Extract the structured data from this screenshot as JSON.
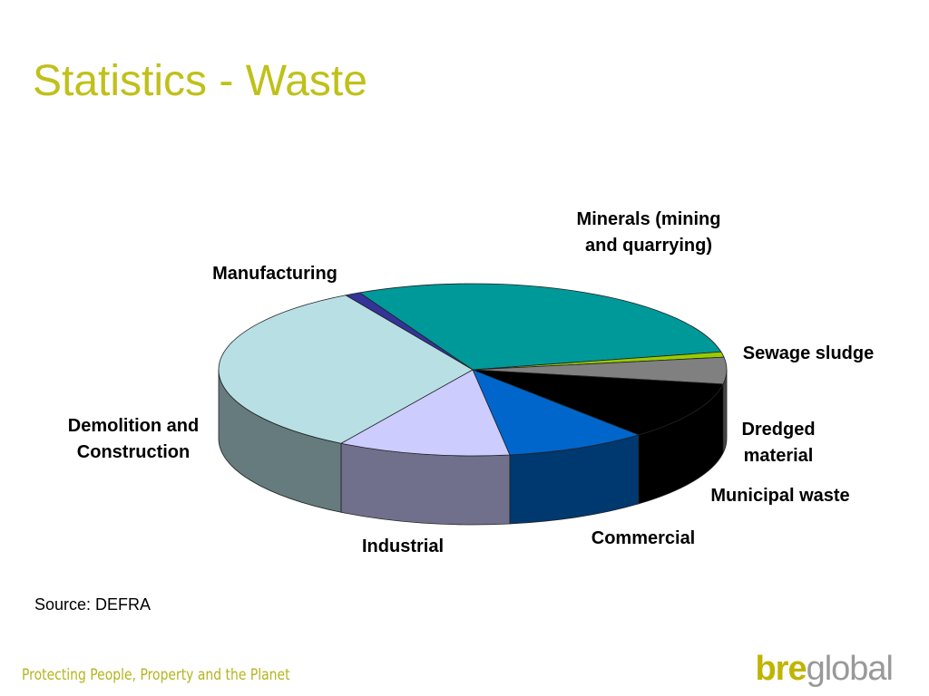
{
  "chart_data": {
    "type": "pie",
    "title": "Statistics - Waste",
    "categories": [
      "Manufacturing",
      "Minerals (mining and quarrying)",
      "Sewage sludge",
      "Dredged material",
      "Municipal waste",
      "Commercial",
      "Industrial",
      "Demolition and Construction"
    ],
    "values": [
      1,
      29,
      1,
      5,
      11,
      9,
      11,
      33
    ],
    "colors": [
      "#333399",
      "#009999",
      "#99cc00",
      "#808080",
      "#000000",
      "#0066cc",
      "#ccccff",
      "#b8e0e4"
    ],
    "three_d": true,
    "source": "Source: DEFRA"
  },
  "footer": {
    "tagline": "Protecting People, Property and the Planet",
    "logo_bold": "bre",
    "logo_light": "global"
  }
}
